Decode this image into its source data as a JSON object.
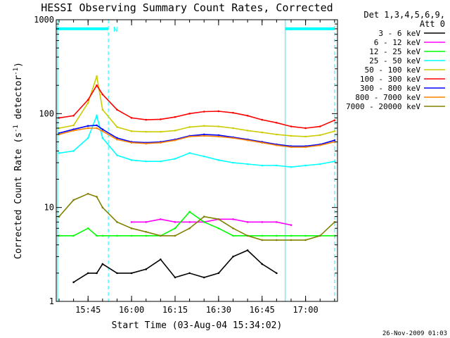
{
  "chart_data": {
    "type": "line",
    "title": "HESSI Observing Summary Count Rates, Corrected",
    "xlabel": "Start Time (03-Aug-04 15:34:02)",
    "ylabel": "Corrected Count Rate (s",
    "ylabel_sup1": "-1",
    "ylabel_mid": " detector",
    "ylabel_sup2": "-1",
    "ylabel_end": ")",
    "yscale": "log",
    "ylim": [
      1,
      1000
    ],
    "xlim": [
      "15:34:02",
      "17:11:00"
    ],
    "x_ticks": [
      "15:45",
      "16:00",
      "16:15",
      "16:30",
      "16:45",
      "17:00"
    ],
    "y_ticks": [
      "1",
      "10",
      "100",
      "1000"
    ],
    "legend_header": [
      "Det 1,3,4,5,6,9,",
      "Att 0"
    ],
    "legend_placement": "right",
    "footer": "26-Nov-2009 01:03",
    "annotations": [
      {
        "type": "night_bar",
        "from": "15:34",
        "to": "15:52",
        "level": 800
      },
      {
        "type": "night_bar",
        "from": "16:53",
        "to": "17:10",
        "level": 800
      },
      {
        "type": "label",
        "text": "N",
        "at": "15:53",
        "level": 800
      },
      {
        "type": "vline_solid",
        "at": "15:34:30"
      },
      {
        "type": "vline_dashed",
        "at": "15:52"
      },
      {
        "type": "vline_solid",
        "at": "16:53"
      },
      {
        "type": "vline_dashed",
        "at": "17:10"
      }
    ],
    "x": [
      "15:35",
      "15:40",
      "15:45",
      "15:48",
      "15:50",
      "15:55",
      "16:00",
      "16:05",
      "16:10",
      "16:15",
      "16:20",
      "16:25",
      "16:30",
      "16:35",
      "16:40",
      "16:45",
      "16:50",
      "16:55",
      "17:00",
      "17:05",
      "17:10"
    ],
    "series": [
      {
        "name": "3 - 6 keV",
        "color": "#000000",
        "values": [
          null,
          1.6,
          2.0,
          2.0,
          2.5,
          2.0,
          2.0,
          2.2,
          2.8,
          1.8,
          2.0,
          1.8,
          2.0,
          3.0,
          3.5,
          2.5,
          2.0,
          null,
          null,
          null,
          null
        ]
      },
      {
        "name": "6 - 12 keV",
        "color": "#ff00ff",
        "values": [
          null,
          null,
          null,
          null,
          null,
          null,
          7,
          7,
          7.5,
          7,
          7,
          7,
          7.5,
          7.5,
          7,
          7,
          7,
          6.5,
          null,
          null,
          null
        ]
      },
      {
        "name": "12 - 25 keV",
        "color": "#00ff00",
        "values": [
          5,
          5,
          6,
          5,
          5,
          5,
          5,
          5,
          5,
          6,
          9,
          7,
          6,
          5,
          5,
          5,
          5,
          5,
          5,
          5,
          5
        ]
      },
      {
        "name": "25 - 50 keV",
        "color": "#00ffff",
        "values": [
          38,
          40,
          55,
          95,
          55,
          36,
          32,
          31,
          31,
          33,
          38,
          35,
          32,
          30,
          29,
          28,
          28,
          27,
          28,
          29,
          31
        ]
      },
      {
        "name": "50 - 100 keV",
        "color": "#cccc00",
        "values": [
          70,
          75,
          130,
          250,
          110,
          72,
          65,
          64,
          64,
          66,
          72,
          74,
          73,
          70,
          66,
          63,
          60,
          58,
          57,
          59,
          65
        ]
      },
      {
        "name": "100 - 300 keV",
        "color": "#ff0000",
        "values": [
          90,
          95,
          140,
          200,
          160,
          110,
          90,
          86,
          87,
          92,
          100,
          105,
          106,
          102,
          95,
          86,
          80,
          73,
          70,
          73,
          85
        ]
      },
      {
        "name": "300 - 800 keV",
        "color": "#0000ff",
        "values": [
          62,
          68,
          74,
          75,
          68,
          55,
          50,
          49,
          50,
          53,
          58,
          60,
          59,
          56,
          53,
          50,
          47,
          45,
          45,
          47,
          52
        ]
      },
      {
        "name": "800 - 7000 keV",
        "color": "#ff8000",
        "values": [
          60,
          66,
          70,
          70,
          65,
          53,
          49,
          48,
          49,
          52,
          57,
          58,
          57,
          55,
          52,
          49,
          46,
          44,
          44,
          46,
          50
        ]
      },
      {
        "name": "7000 - 20000 keV",
        "color": "#808000",
        "values": [
          8,
          12,
          14,
          13,
          10,
          7,
          6,
          5.5,
          5,
          5,
          6,
          8,
          7.5,
          6,
          5,
          4.5,
          4.5,
          4.5,
          4.5,
          5,
          7
        ]
      }
    ]
  }
}
